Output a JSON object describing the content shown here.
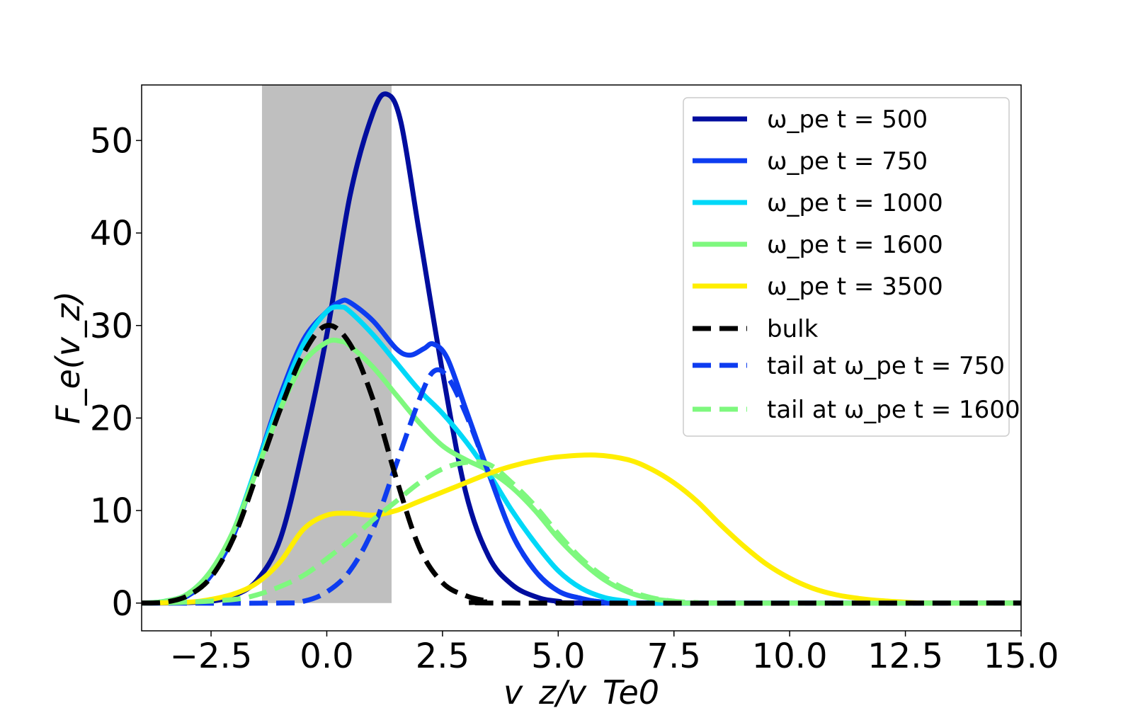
{
  "chart_data": {
    "type": "line",
    "xlabel": "v_z/v_Te0",
    "ylabel": "F_e(v_z)",
    "xlim": [
      -4.0,
      15.0
    ],
    "ylim": [
      -3.0,
      56.0
    ],
    "xticks": [
      -2.5,
      0.0,
      2.5,
      5.0,
      7.5,
      10.0,
      12.5,
      15.0
    ],
    "xtick_labels": [
      "−2.5",
      "0.0",
      "2.5",
      "5.0",
      "7.5",
      "10.0",
      "12.5",
      "15.0"
    ],
    "yticks": [
      0,
      10,
      20,
      30,
      40,
      50
    ],
    "ytick_labels": [
      "0",
      "10",
      "20",
      "30",
      "40",
      "50"
    ],
    "shaded_region": {
      "x": [
        -1.4,
        1.4
      ],
      "color": "#bfbfbf"
    },
    "legend_placement": "top-right",
    "grid": false,
    "series": [
      {
        "name": "ω_pe t = 500",
        "color": "#000d9e",
        "style": "solid",
        "points": [
          [
            -4,
            0
          ],
          [
            -3,
            0.05
          ],
          [
            -2.5,
            0.2
          ],
          [
            -2,
            0.8
          ],
          [
            -1.5,
            2.5
          ],
          [
            -1,
            7
          ],
          [
            -0.5,
            17
          ],
          [
            0,
            29
          ],
          [
            0.5,
            44
          ],
          [
            1,
            53
          ],
          [
            1.3,
            55
          ],
          [
            1.6,
            52
          ],
          [
            2,
            40
          ],
          [
            2.5,
            25
          ],
          [
            3,
            12
          ],
          [
            3.5,
            5
          ],
          [
            4,
            2
          ],
          [
            4.5,
            0.7
          ],
          [
            5,
            0.2
          ],
          [
            6,
            0
          ],
          [
            15,
            0
          ]
        ]
      },
      {
        "name": "ω_pe t = 750",
        "color": "#0d3cf0",
        "style": "solid",
        "points": [
          [
            -4,
            0
          ],
          [
            -3.5,
            0.1
          ],
          [
            -3,
            0.8
          ],
          [
            -2.5,
            3
          ],
          [
            -2,
            7.5
          ],
          [
            -1.5,
            15
          ],
          [
            -1,
            22.5
          ],
          [
            -0.5,
            28.5
          ],
          [
            0,
            31.5
          ],
          [
            0.3,
            32.6
          ],
          [
            0.5,
            32.5
          ],
          [
            1,
            30.5
          ],
          [
            1.5,
            27.5
          ],
          [
            1.8,
            26.8
          ],
          [
            2.1,
            27.5
          ],
          [
            2.3,
            28
          ],
          [
            2.6,
            26.5
          ],
          [
            3,
            21
          ],
          [
            3.5,
            14
          ],
          [
            4,
            7.5
          ],
          [
            4.5,
            3.5
          ],
          [
            5,
            1.3
          ],
          [
            5.5,
            0.5
          ],
          [
            6,
            0.1
          ],
          [
            7,
            0
          ],
          [
            15,
            0
          ]
        ]
      },
      {
        "name": "ω_pe t = 1000",
        "color": "#00d8f8",
        "style": "solid",
        "points": [
          [
            -4,
            0
          ],
          [
            -3.5,
            0.2
          ],
          [
            -3,
            1
          ],
          [
            -2.5,
            3.5
          ],
          [
            -2,
            8
          ],
          [
            -1.5,
            15
          ],
          [
            -1,
            22
          ],
          [
            -0.5,
            28
          ],
          [
            0,
            31.5
          ],
          [
            0.3,
            32
          ],
          [
            0.5,
            31.5
          ],
          [
            1,
            29
          ],
          [
            1.5,
            26
          ],
          [
            2,
            23
          ],
          [
            2.5,
            20.5
          ],
          [
            3,
            17.5
          ],
          [
            3.5,
            14
          ],
          [
            4,
            10
          ],
          [
            4.5,
            6.5
          ],
          [
            5,
            3.5
          ],
          [
            5.5,
            1.6
          ],
          [
            6,
            0.6
          ],
          [
            6.5,
            0.2
          ],
          [
            7,
            0
          ],
          [
            15,
            0
          ]
        ]
      },
      {
        "name": "ω_pe t = 1600",
        "color": "#7ef87e",
        "style": "solid",
        "points": [
          [
            -4,
            0
          ],
          [
            -3.5,
            0.2
          ],
          [
            -3,
            1
          ],
          [
            -2.5,
            3.5
          ],
          [
            -2,
            8
          ],
          [
            -1.5,
            14.5
          ],
          [
            -1,
            21
          ],
          [
            -0.5,
            26
          ],
          [
            0,
            28.2
          ],
          [
            0.3,
            28.3
          ],
          [
            0.5,
            27.8
          ],
          [
            1,
            25.5
          ],
          [
            1.5,
            22.5
          ],
          [
            2,
            19.5
          ],
          [
            2.5,
            17
          ],
          [
            3,
            15.5
          ],
          [
            3.5,
            14.3
          ],
          [
            4,
            12.5
          ],
          [
            4.5,
            10
          ],
          [
            5,
            7
          ],
          [
            5.5,
            4.5
          ],
          [
            6,
            2.5
          ],
          [
            6.5,
            1.2
          ],
          [
            7,
            0.5
          ],
          [
            7.5,
            0.2
          ],
          [
            8,
            0
          ],
          [
            15,
            0
          ]
        ]
      },
      {
        "name": "ω_pe t = 3500",
        "color": "#ffee00",
        "style": "solid",
        "points": [
          [
            -4,
            0
          ],
          [
            -3,
            0.1
          ],
          [
            -2.5,
            0.4
          ],
          [
            -2,
            1
          ],
          [
            -1.5,
            2.2
          ],
          [
            -1,
            4.5
          ],
          [
            -0.5,
            8
          ],
          [
            0,
            9.5
          ],
          [
            0.5,
            9.7
          ],
          [
            1,
            9.5
          ],
          [
            1.5,
            10
          ],
          [
            2,
            11
          ],
          [
            2.5,
            12
          ],
          [
            3,
            13
          ],
          [
            3.5,
            14
          ],
          [
            4,
            14.8
          ],
          [
            4.5,
            15.4
          ],
          [
            5,
            15.8
          ],
          [
            5.8,
            16
          ],
          [
            6.5,
            15.5
          ],
          [
            7,
            14.5
          ],
          [
            7.5,
            13
          ],
          [
            8,
            11
          ],
          [
            8.5,
            8.5
          ],
          [
            9,
            6.2
          ],
          [
            9.5,
            4.2
          ],
          [
            10,
            2.7
          ],
          [
            10.5,
            1.6
          ],
          [
            11,
            0.9
          ],
          [
            11.5,
            0.5
          ],
          [
            12,
            0.25
          ],
          [
            12.5,
            0.1
          ],
          [
            13,
            0
          ],
          [
            15,
            0
          ]
        ]
      },
      {
        "name": "bulk",
        "color": "#000000",
        "style": "dashed",
        "points": [
          [
            -4,
            0
          ],
          [
            -3.5,
            0.1
          ],
          [
            -3,
            0.8
          ],
          [
            -2.5,
            2.8
          ],
          [
            -2,
            7.2
          ],
          [
            -1.5,
            14
          ],
          [
            -1,
            21
          ],
          [
            -0.5,
            27
          ],
          [
            0,
            30
          ],
          [
            0.5,
            28
          ],
          [
            1,
            22
          ],
          [
            1.5,
            13.5
          ],
          [
            2,
            6
          ],
          [
            2.5,
            2.2
          ],
          [
            3,
            0.8
          ],
          [
            3.5,
            0.2
          ],
          [
            4,
            0
          ],
          [
            15,
            0
          ]
        ]
      },
      {
        "name": "tail at ω_pe t = 750",
        "color": "#0d3cf0",
        "style": "dashed",
        "points": [
          [
            -4,
            0
          ],
          [
            -1,
            0
          ],
          [
            -0.5,
            0.2
          ],
          [
            0,
            1.2
          ],
          [
            0.5,
            3.5
          ],
          [
            1,
            8
          ],
          [
            1.5,
            15
          ],
          [
            2,
            22
          ],
          [
            2.3,
            25
          ],
          [
            2.6,
            24.5
          ],
          [
            3,
            20.5
          ],
          [
            3.5,
            14
          ],
          [
            4,
            7.5
          ],
          [
            4.5,
            3.5
          ],
          [
            5,
            1.3
          ],
          [
            5.5,
            0.5
          ],
          [
            6,
            0.1
          ],
          [
            7,
            0
          ],
          [
            15,
            0
          ]
        ]
      },
      {
        "name": "tail at ω_pe t = 1600",
        "color": "#7ef87e",
        "style": "dashed",
        "points": [
          [
            -4,
            0
          ],
          [
            -3,
            0.1
          ],
          [
            -2,
            0.4
          ],
          [
            -1.5,
            0.9
          ],
          [
            -1,
            1.8
          ],
          [
            -0.5,
            3
          ],
          [
            0,
            4.8
          ],
          [
            0.5,
            6.8
          ],
          [
            1,
            9
          ],
          [
            1.5,
            11
          ],
          [
            2,
            13
          ],
          [
            2.5,
            14.5
          ],
          [
            3,
            15.2
          ],
          [
            3.5,
            15
          ],
          [
            4,
            13
          ],
          [
            4.5,
            10.5
          ],
          [
            5,
            7.5
          ],
          [
            5.5,
            4.8
          ],
          [
            6,
            2.8
          ],
          [
            6.5,
            1.4
          ],
          [
            7,
            0.6
          ],
          [
            7.5,
            0.2
          ],
          [
            8,
            0.05
          ],
          [
            8.5,
            0
          ],
          [
            15,
            0
          ]
        ]
      }
    ]
  }
}
